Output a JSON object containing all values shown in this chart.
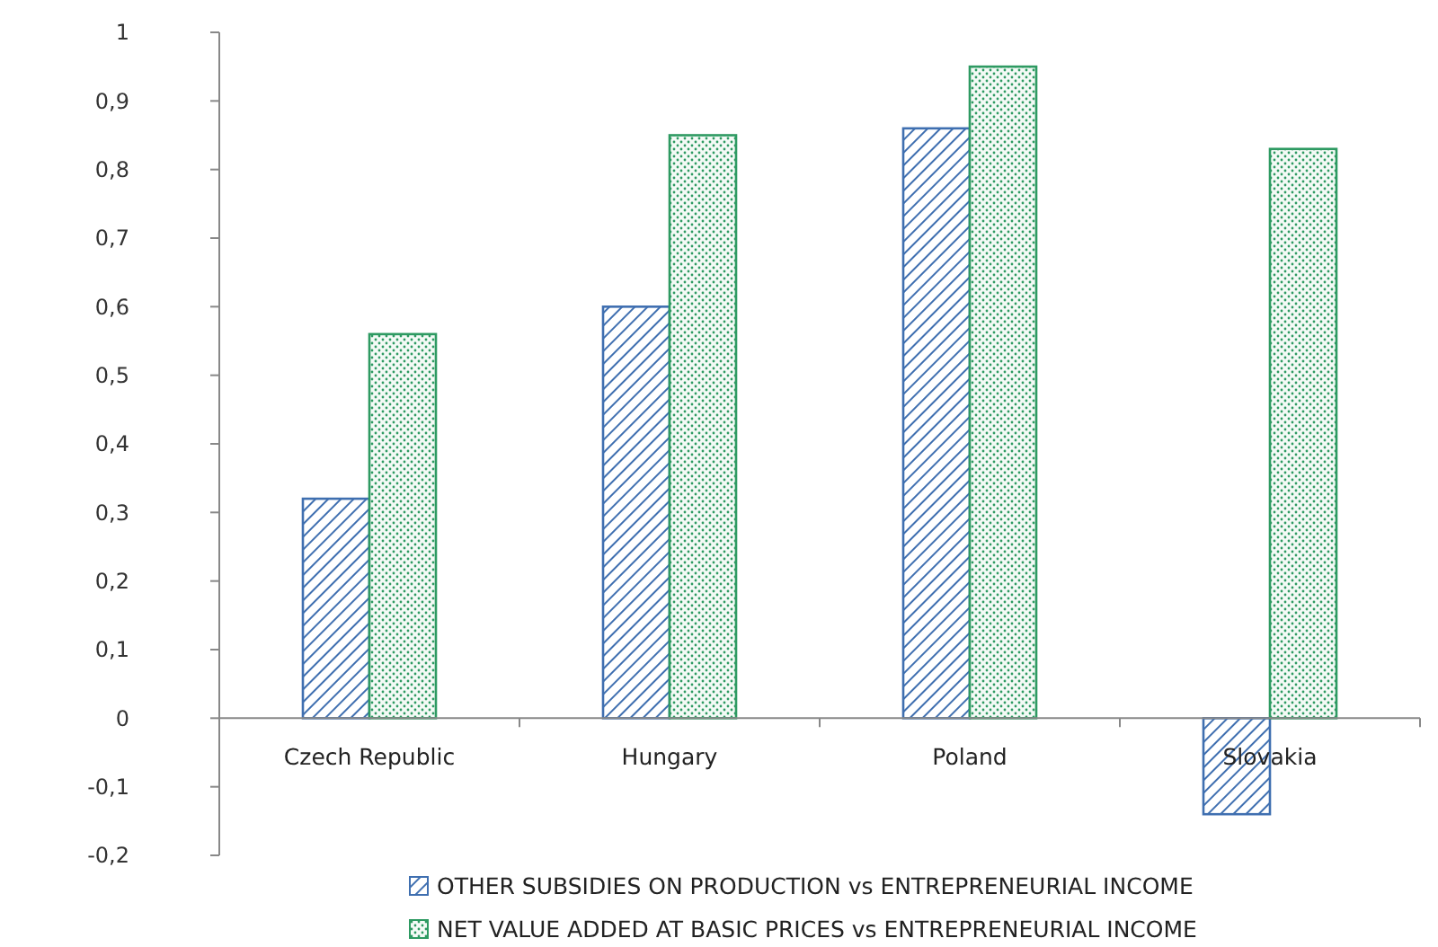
{
  "chart_data": {
    "type": "bar",
    "categories": [
      "Czech Republic",
      "Hungary",
      "Poland",
      "Slovakia"
    ],
    "series": [
      {
        "name": "OTHER SUBSIDIES ON PRODUCTION vs ENTREPRENEURIAL INCOME",
        "color": "#3f6fb0",
        "values": [
          0.32,
          0.6,
          0.86,
          -0.14
        ]
      },
      {
        "name": "NET VALUE ADDED AT BASIC PRICES vs ENTREPRENEURIAL INCOME",
        "color": "#2e9a62",
        "values": [
          0.56,
          0.85,
          0.95,
          0.83
        ]
      }
    ],
    "ylim": [
      -0.2,
      1
    ],
    "yticks": [
      {
        "value": -0.2,
        "label": "-0,2"
      },
      {
        "value": -0.1,
        "label": "-0,1"
      },
      0,
      {
        "value": 0.1,
        "label": "0,1"
      },
      {
        "value": 0.2,
        "label": "0,2"
      },
      {
        "value": 0.3,
        "label": "0,3"
      },
      {
        "value": 0.4,
        "label": "0,4"
      },
      {
        "value": 0.5,
        "label": "0,5"
      },
      {
        "value": 0.6,
        "label": "0,6"
      },
      {
        "value": 0.7,
        "label": "0,7"
      },
      {
        "value": 0.8,
        "label": "0,8"
      },
      {
        "value": 0.9,
        "label": "0,9"
      },
      1
    ],
    "legend": "bottom",
    "grid": false
  }
}
